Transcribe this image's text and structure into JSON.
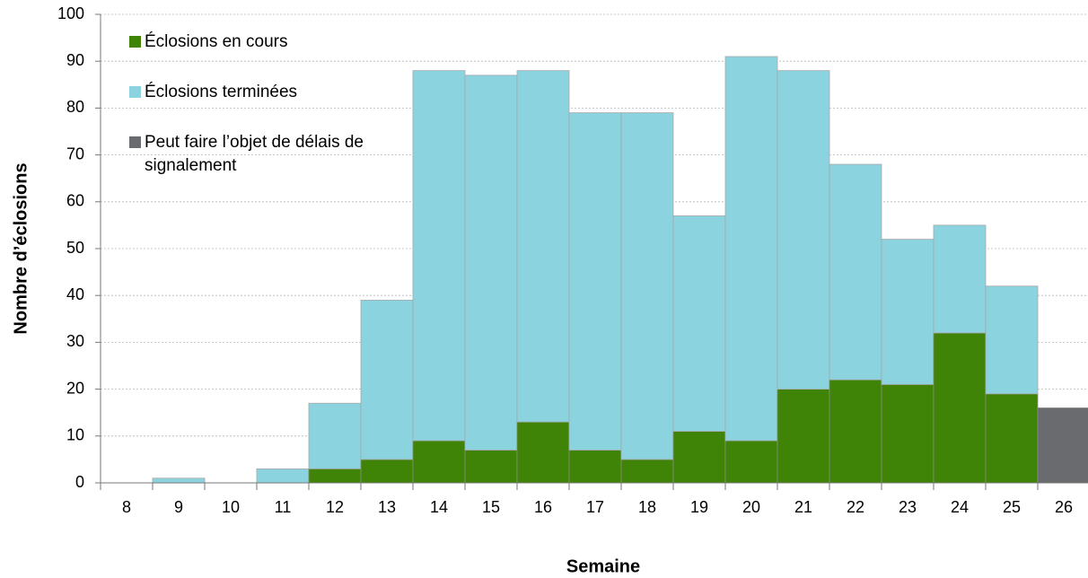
{
  "chart_data": {
    "type": "stacked_bar",
    "x_label": "Semaine",
    "y_label": "Nombre d’éclosions",
    "categories": [
      "8",
      "9",
      "10",
      "11",
      "12",
      "13",
      "14",
      "15",
      "16",
      "17",
      "18",
      "19",
      "20",
      "21",
      "22",
      "23",
      "24",
      "25",
      "26"
    ],
    "series": [
      {
        "name": "Éclosions en cours",
        "color": "#3f8406",
        "values": [
          0,
          0,
          0,
          0,
          3,
          5,
          9,
          7,
          13,
          7,
          5,
          11,
          9,
          20,
          22,
          21,
          32,
          19,
          0
        ]
      },
      {
        "name": "Éclosions terminées",
        "color": "#8ad3df",
        "values": [
          0,
          1,
          0,
          3,
          14,
          34,
          79,
          80,
          75,
          72,
          74,
          46,
          82,
          68,
          46,
          31,
          23,
          23,
          0
        ]
      },
      {
        "name": "Peut faire l’objet de délais de signalement",
        "color": "#6a6b6e",
        "values": [
          0,
          0,
          0,
          0,
          0,
          0,
          0,
          0,
          0,
          0,
          0,
          0,
          0,
          0,
          0,
          0,
          0,
          0,
          16
        ]
      }
    ],
    "ylim": [
      0,
      100
    ],
    "yticks": [
      0,
      10,
      20,
      30,
      40,
      50,
      60,
      70,
      80,
      90,
      100
    ],
    "grid": true
  }
}
